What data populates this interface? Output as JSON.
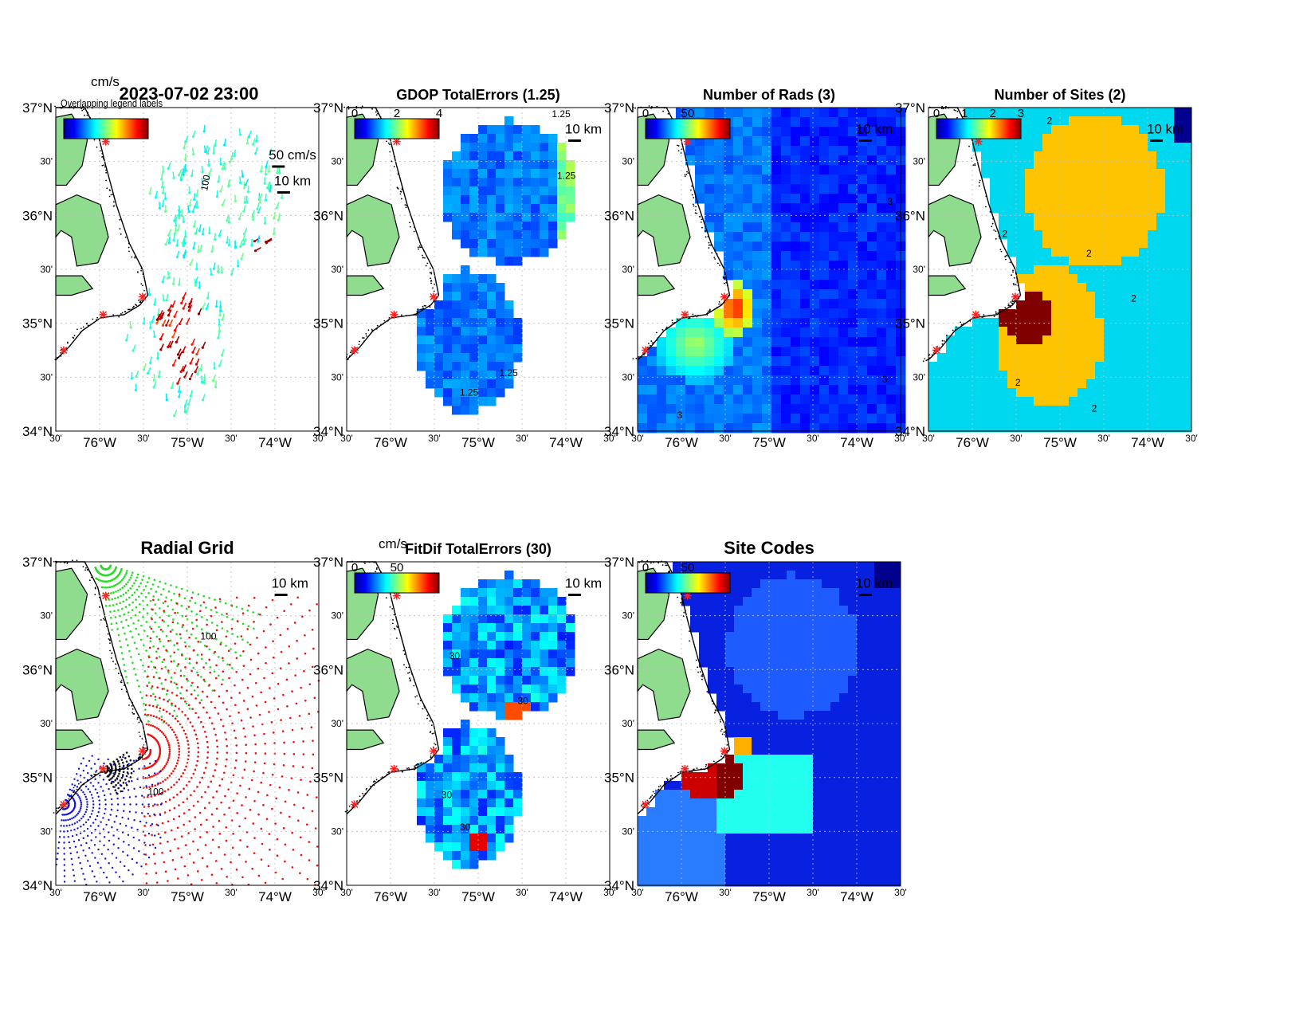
{
  "colors": {
    "land": "#8fdc8f",
    "grid": "#bfbfbf",
    "site_marker": "#ff2020",
    "background": "#ffffff"
  },
  "axes": {
    "lat_labels": [
      "37°N",
      "30'",
      "36°N",
      "30'",
      "35°N",
      "30'",
      "34°N"
    ],
    "lon_labels": [
      "30'",
      "76°W",
      "30'",
      "75°W",
      "30'",
      "74°W",
      "30'"
    ],
    "lat_range": [
      34,
      37
    ],
    "lon_range": [
      -76.5,
      -73.5
    ]
  },
  "panels": [
    {
      "id": "velocity",
      "title": "2023-07-02 23:00",
      "colorbar_unit": "cm/s",
      "colorbar_ticks": [],
      "overlap_label": "Overlapping legend labels",
      "scale_labels": [
        "50 cm/s",
        "10 km"
      ],
      "contour_label": "100"
    },
    {
      "id": "gdop",
      "title": "GDOP TotalErrors (1.25)",
      "colorbar_unit": "",
      "colorbar_ticks": [
        "0",
        "2",
        "4"
      ],
      "scale_labels": [
        "10 km"
      ],
      "contour_labels": [
        "1.25",
        "1.25",
        "1.25",
        "1.25"
      ]
    },
    {
      "id": "rads",
      "title": "Number of Rads (3)",
      "colorbar_unit": "",
      "colorbar_ticks": [
        "0",
        "50"
      ],
      "scale_labels": [
        "10 km"
      ],
      "contour_labels": [
        "3",
        "3",
        "3"
      ]
    },
    {
      "id": "sites",
      "title": "Number of Sites (2)",
      "colorbar_unit": "",
      "colorbar_ticks": [
        "0",
        "1",
        "2",
        "3"
      ],
      "scale_labels": [
        "10 km"
      ],
      "contour_labels": [
        "2",
        "2",
        "2",
        "2",
        "2",
        "2"
      ]
    },
    {
      "id": "radial",
      "title": "Radial Grid",
      "colorbar_unit": "",
      "colorbar_ticks": [],
      "scale_labels": [
        "10 km"
      ],
      "contour_labels": [
        "100",
        "100"
      ]
    },
    {
      "id": "fitdif",
      "title": "FitDif TotalErrors (30)",
      "colorbar_unit": "cm/s",
      "colorbar_ticks": [
        "0",
        "50"
      ],
      "scale_labels": [
        "10 km"
      ],
      "contour_labels": [
        "30",
        "30",
        "30",
        "30"
      ]
    },
    {
      "id": "codes",
      "title": "Site Codes",
      "colorbar_unit": "",
      "colorbar_ticks": [
        "0",
        "50"
      ],
      "scale_labels": [
        "10 km"
      ]
    }
  ]
}
